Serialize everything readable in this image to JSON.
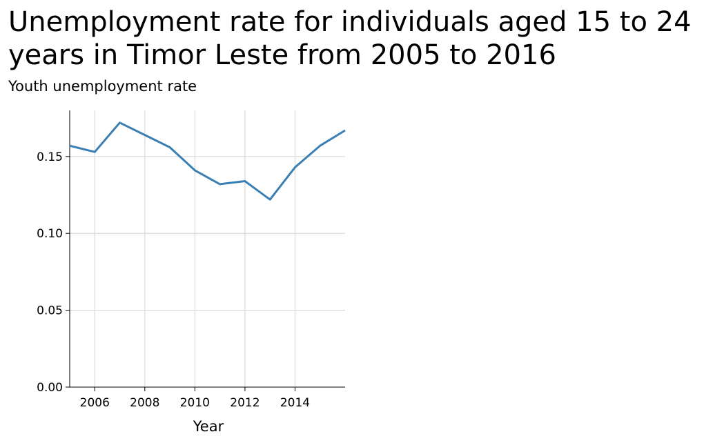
{
  "chart_data": {
    "type": "line",
    "title": "Unemployment rate for individuals aged 15 to 24 years in Timor Leste from 2005 to 2016",
    "xlabel": "Year",
    "ylabel": "Youth unemployment rate",
    "x": [
      2005,
      2006,
      2007,
      2008,
      2009,
      2010,
      2011,
      2012,
      2013,
      2014,
      2015,
      2016
    ],
    "series": [
      {
        "values": [
          0.157,
          0.153,
          0.172,
          0.164,
          0.156,
          0.141,
          0.132,
          0.134,
          0.122,
          0.143,
          0.157,
          0.167
        ]
      }
    ],
    "xlim": [
      2005,
      2016
    ],
    "ylim": [
      0,
      0.18
    ],
    "xticks": [
      2006,
      2008,
      2010,
      2012,
      2014
    ],
    "yticks": [
      0.0,
      0.05,
      0.1,
      0.15
    ],
    "xtick_labels": [
      "2006",
      "2008",
      "2010",
      "2012",
      "2014"
    ],
    "ytick_labels": [
      "0.00",
      "0.05",
      "0.10",
      "0.15"
    ],
    "grid": true,
    "line_color": "#3a7fb4",
    "grid_color": "#d9d9d9"
  }
}
